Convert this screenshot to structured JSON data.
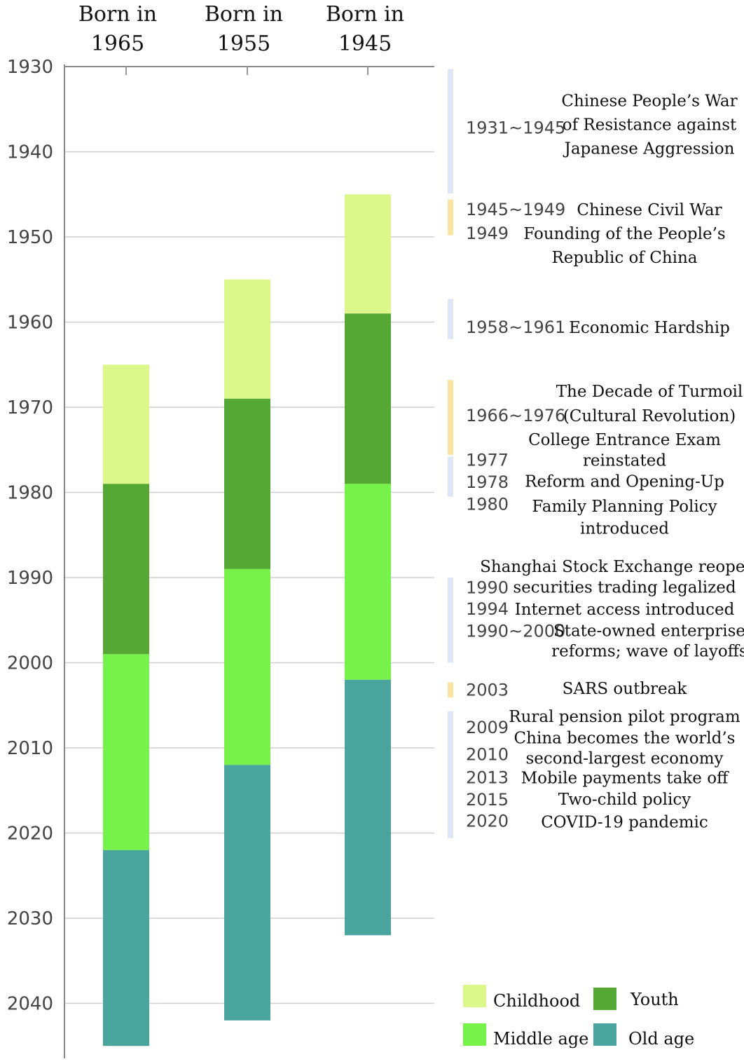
{
  "chart_data": {
    "type": "bar",
    "subtype": "stacked-range-timeline",
    "y_axis": {
      "ylim": [
        1930,
        2045
      ],
      "ticks": [
        1930,
        1940,
        1950,
        1960,
        1970,
        1980,
        1990,
        2000,
        2010,
        2020,
        2030,
        2040
      ],
      "grid": true
    },
    "columns": [
      {
        "title_line1": "Born in",
        "title_line2": "1965",
        "stages": [
          {
            "stage": "Childhood",
            "start": 1965,
            "end": 1979
          },
          {
            "stage": "Youth",
            "start": 1979,
            "end": 1999
          },
          {
            "stage": "Middle age",
            "start": 1999,
            "end": 2022
          },
          {
            "stage": "Old age",
            "start": 2022,
            "end": 2045
          }
        ]
      },
      {
        "title_line1": "Born in",
        "title_line2": "1955",
        "stages": [
          {
            "stage": "Childhood",
            "start": 1955,
            "end": 1969
          },
          {
            "stage": "Youth",
            "start": 1969,
            "end": 1989
          },
          {
            "stage": "Middle age",
            "start": 1989,
            "end": 2012
          },
          {
            "stage": "Old age",
            "start": 2012,
            "end": 2042
          }
        ]
      },
      {
        "title_line1": "Born in",
        "title_line2": "1945",
        "stages": [
          {
            "stage": "Childhood",
            "start": 1945,
            "end": 1959
          },
          {
            "stage": "Youth",
            "start": 1959,
            "end": 1979
          },
          {
            "stage": "Middle age",
            "start": 1979,
            "end": 2002
          },
          {
            "stage": "Old age",
            "start": 2002,
            "end": 2032
          }
        ]
      }
    ],
    "legend": [
      {
        "label": "Childhood",
        "color": "#dcf78a"
      },
      {
        "label": "Youth",
        "color": "#55a833"
      },
      {
        "label": "Middle age",
        "color": "#76f24a"
      },
      {
        "label": "Old age",
        "color": "#4aa59e"
      }
    ],
    "event_groups": [
      {
        "color": "#dbe7f4",
        "start": 1930.3,
        "end": 1944.9,
        "items": [
          {
            "year": "1931~1945",
            "year_at": 1937.2,
            "lines": [
              {
                "text": "Chinese People’s War",
                "at": 1934.0
              },
              {
                "text": "of Resistance against",
                "at": 1936.8
              },
              {
                "text": "Japanese Aggression",
                "at": 1939.6
              }
            ]
          }
        ]
      },
      {
        "color": "#fbe3a0",
        "start": 1945.6,
        "end": 1949.8,
        "items": [
          {
            "year": "1945~1949",
            "year_at": 1946.8,
            "lines": [
              {
                "text": "Chinese Civil War",
                "at": 1946.8
              }
            ]
          },
          {
            "year": "1949",
            "year_at": 1949.6,
            "lines": [
              {
                "text": "Founding of the People’s",
                "at": 1949.6
              },
              {
                "text": "Republic of China",
                "at": 1952.4
              }
            ]
          }
        ]
      },
      {
        "color": "#dbe7f4",
        "start": 1957.3,
        "end": 1962.0,
        "items": [
          {
            "year": "1958~1961",
            "year_at": 1960.6,
            "lines": [
              {
                "text": "Economic Hardship",
                "at": 1960.6
              }
            ]
          }
        ]
      },
      {
        "color": "#fbe3a0",
        "start": 1966.8,
        "end": 1975.6,
        "items": [
          {
            "year": "1966~1976",
            "year_at": 1971.0,
            "lines": [
              {
                "text": "The Decade of Turmoil",
                "at": 1968.1
              },
              {
                "text": "(Cultural Revolution)",
                "at": 1971.0
              }
            ]
          }
        ]
      },
      {
        "color": "#dbe7f4",
        "start": 1975.8,
        "end": 1980.5,
        "items": [
          {
            "year": "1977",
            "year_at": 1976.2,
            "lines": [
              {
                "text": "College Entrance Exam",
                "at": 1973.8
              },
              {
                "text": "reinstated",
                "at": 1976.2
              }
            ]
          },
          {
            "year": "1978",
            "year_at": 1978.8,
            "lines": [
              {
                "text": "Reform and Opening-Up",
                "at": 1978.7
              }
            ]
          },
          {
            "year": "1980",
            "year_at": 1981.4,
            "lines": [
              {
                "text": "Family Planning Policy",
                "at": 1981.6
              },
              {
                "text": "introduced",
                "at": 1984.2
              }
            ]
          }
        ]
      },
      {
        "color": "#dbe7f4",
        "start": 1990.0,
        "end": 2000.0,
        "items": [
          {
            "year": "1990",
            "year_at": 1991.2,
            "lines": [
              {
                "text": "Shanghai Stock Exchange reopens;",
                "at": 1988.7
              },
              {
                "text": "securities trading legalized",
                "at": 1991.1
              }
            ]
          },
          {
            "year": "1994",
            "year_at": 1993.7,
            "lines": [
              {
                "text": "Internet access introduced",
                "at": 1993.7
              }
            ]
          },
          {
            "year": "1990~2000",
            "year_at": 1996.3,
            "lines": [
              {
                "text": "State-owned enterprise",
                "at": 1996.2
              },
              {
                "text": "reforms; wave of layoffs",
                "at": 1998.6
              }
            ]
          }
        ]
      },
      {
        "color": "#fbe3a0",
        "start": 2002.3,
        "end": 2004.1,
        "items": [
          {
            "year": "2003",
            "year_at": 2003.2,
            "lines": [
              {
                "text": "SARS outbreak",
                "at": 2003.0
              }
            ]
          }
        ]
      },
      {
        "color": "#dbe7f4",
        "start": 2005.7,
        "end": 2020.6,
        "items": [
          {
            "year": "2009",
            "year_at": 2007.6,
            "lines": [
              {
                "text": "Rural pension pilot program",
                "at": 2006.3
              }
            ]
          },
          {
            "year": "2010",
            "year_at": 2010.8,
            "lines": [
              {
                "text": "China becomes the world’s",
                "at": 2008.8
              },
              {
                "text": "second-largest economy",
                "at": 2011.2
              }
            ]
          },
          {
            "year": "2013",
            "year_at": 2013.5,
            "lines": [
              {
                "text": "Mobile payments take off",
                "at": 2013.5
              }
            ]
          },
          {
            "year": "2015",
            "year_at": 2016.1,
            "lines": [
              {
                "text": "Two-child policy",
                "at": 2016.0
              }
            ]
          },
          {
            "year": "2020",
            "year_at": 2018.6,
            "lines": [
              {
                "text": "COVID-19 pandemic",
                "at": 2018.7
              }
            ]
          }
        ]
      }
    ]
  }
}
